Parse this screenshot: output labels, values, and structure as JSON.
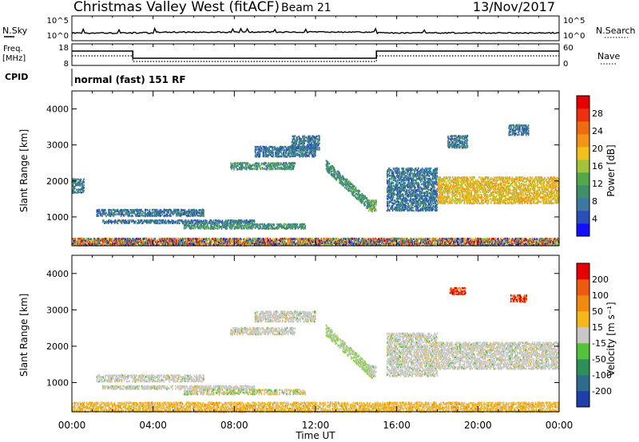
{
  "header": {
    "station": "Christmas Valley West (fitACF)",
    "beam": "Beam 21",
    "date": "13/Nov/2017"
  },
  "top_panel": {
    "left_label_1": "N.Sky",
    "left_label_2": "Freq.",
    "left_label_3": "[MHz]",
    "left_label_4": "CPID",
    "right_label_1": "N.Search",
    "right_label_2": "Nave",
    "nsky_ticks": [
      "10^5",
      "10^0"
    ],
    "nsearch_ticks": [
      "10^5",
      "10^0"
    ],
    "freq_ticks": [
      "18",
      "8"
    ],
    "nave_ticks": [
      "60",
      "0"
    ],
    "cpid_text": "normal (fast) 151 RF"
  },
  "x_axis": {
    "label": "Time UT",
    "ticks": [
      "00:00",
      "04:00",
      "08:00",
      "12:00",
      "16:00",
      "20:00",
      "00:00"
    ]
  },
  "chart_data": [
    {
      "type": "heatmap",
      "name": "power-panel",
      "ylabel": "Slant Range [km]",
      "yticks": [
        1000,
        2000,
        3000,
        4000
      ],
      "ylim": [
        200,
        4500
      ],
      "xlim_hours": [
        0,
        24
      ],
      "colorbar": {
        "label": "Power [dB]",
        "ticks": [
          "4",
          "8",
          "12",
          "16",
          "20",
          "24",
          "28"
        ],
        "colors": [
          "#1010ff",
          "#2a4fb8",
          "#3d7aa0",
          "#3f8f6a",
          "#54a84a",
          "#a6c23a",
          "#f2c01a",
          "#f39418",
          "#f06a10",
          "#ee3010",
          "#e60000"
        ]
      },
      "regions": [
        {
          "t": [
            0.0,
            0.6
          ],
          "r": [
            1700,
            2100
          ],
          "level": 2
        },
        {
          "t": [
            1.2,
            6.5
          ],
          "r": [
            1050,
            1250
          ],
          "level": 2
        },
        {
          "t": [
            1.5,
            9.0
          ],
          "r": [
            850,
            950
          ],
          "level": 2
        },
        {
          "t": [
            5.5,
            11.5
          ],
          "r": [
            700,
            850
          ],
          "level": 3
        },
        {
          "t": [
            7.8,
            11.0
          ],
          "r": [
            2350,
            2550
          ],
          "level": 3
        },
        {
          "t": [
            9.0,
            12.0
          ],
          "r": [
            2700,
            3000
          ],
          "level": 2
        },
        {
          "t": [
            10.8,
            12.2
          ],
          "r": [
            2900,
            3300
          ],
          "level": 2
        },
        {
          "t": [
            12.5,
            14.8
          ],
          "r": [
            1300,
            2500
          ],
          "level": 3,
          "slope": true
        },
        {
          "t": [
            14.6,
            15.0
          ],
          "r": [
            1200,
            1500
          ],
          "level": 4
        },
        {
          "t": [
            15.5,
            18.0
          ],
          "r": [
            1200,
            2400
          ],
          "level": 2
        },
        {
          "t": [
            18.0,
            24.0
          ],
          "r": [
            1400,
            2150
          ],
          "level": 6
        },
        {
          "t": [
            18.5,
            19.5
          ],
          "r": [
            2950,
            3300
          ],
          "level": 2
        },
        {
          "t": [
            21.5,
            22.5
          ],
          "r": [
            3300,
            3600
          ],
          "level": 2
        },
        {
          "t": [
            0.0,
            24.0
          ],
          "r": [
            240,
            450
          ],
          "level": 5,
          "ground": true
        }
      ]
    },
    {
      "type": "heatmap",
      "name": "velocity-panel",
      "ylabel": "Slant Range [km]",
      "yticks": [
        1000,
        2000,
        3000,
        4000
      ],
      "ylim": [
        200,
        4500
      ],
      "xlim_hours": [
        0,
        24
      ],
      "colorbar": {
        "label": "Velocity [m s⁻¹]",
        "ticks": [
          "200",
          "100",
          "50",
          "15",
          "-15",
          "-50",
          "-100",
          "-200"
        ],
        "colors": [
          "#1f3fa8",
          "#2d6c8a",
          "#2f8f5a",
          "#55c23c",
          "#c8c8c8",
          "#f5b71a",
          "#f28a10",
          "#ee5a10",
          "#e60000"
        ]
      },
      "regions": [
        {
          "t": [
            1.2,
            6.5
          ],
          "r": [
            1050,
            1250
          ],
          "class": "gray"
        },
        {
          "t": [
            1.5,
            9.0
          ],
          "r": [
            850,
            950
          ],
          "class": "gray"
        },
        {
          "t": [
            5.5,
            11.5
          ],
          "r": [
            700,
            850
          ],
          "class": "mixed"
        },
        {
          "t": [
            7.8,
            11.0
          ],
          "r": [
            2350,
            2550
          ],
          "class": "gray"
        },
        {
          "t": [
            9.0,
            12.0
          ],
          "r": [
            2700,
            3000
          ],
          "class": "gray"
        },
        {
          "t": [
            12.5,
            14.8
          ],
          "r": [
            1300,
            2500
          ],
          "class": "green",
          "slope": true
        },
        {
          "t": [
            14.6,
            15.0
          ],
          "r": [
            1200,
            1500
          ],
          "class": "gray"
        },
        {
          "t": [
            15.5,
            18.0
          ],
          "r": [
            1200,
            2400
          ],
          "class": "gray"
        },
        {
          "t": [
            18.0,
            24.0
          ],
          "r": [
            1400,
            2150
          ],
          "class": "gray"
        },
        {
          "t": [
            18.6,
            19.4
          ],
          "r": [
            3450,
            3650
          ],
          "class": "red"
        },
        {
          "t": [
            21.6,
            22.4
          ],
          "r": [
            3250,
            3450
          ],
          "class": "red"
        },
        {
          "t": [
            0.0,
            24.0
          ],
          "r": [
            220,
            500
          ],
          "class": "ground"
        }
      ]
    }
  ]
}
